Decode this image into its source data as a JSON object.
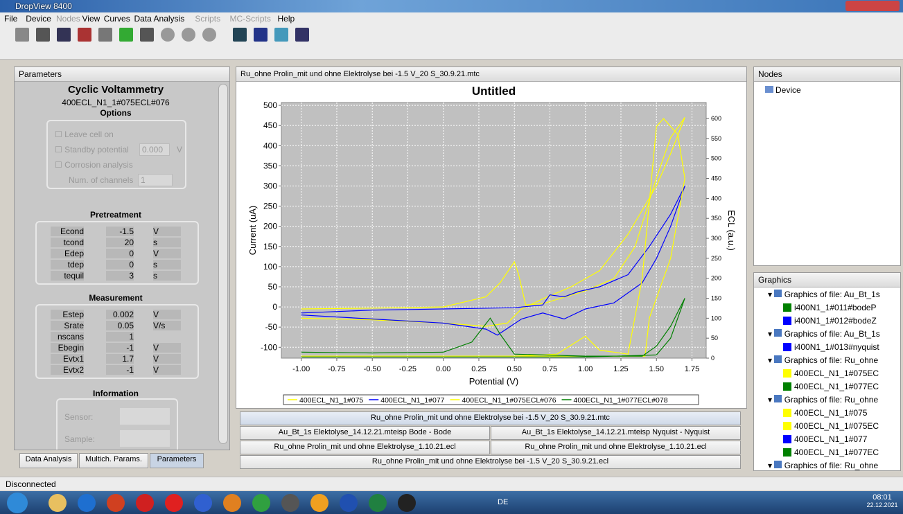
{
  "window": {
    "title": "DropView 8400"
  },
  "menu": [
    "File",
    "Device",
    "Nodes",
    "View",
    "Curves",
    "Data Analysis",
    "Scripts",
    "MC-Scripts",
    "Help"
  ],
  "parameters": {
    "title": "Parameters",
    "heading": "Cyclic Voltammetry",
    "subheading": "400ECL_N1_1#075ECL#076",
    "options": {
      "heading": "Options",
      "leave_cell_on": "Leave cell on",
      "standby_potential": "Standby potential",
      "standby_value": "0.000",
      "standby_unit": "V",
      "corrosion": "Corrosion analysis",
      "channels": "Num. of channels",
      "channels_value": "1"
    },
    "pretreatment": {
      "heading": "Pretreatment",
      "rows": [
        [
          "Econd",
          "-1.5",
          "V"
        ],
        [
          "tcond",
          "20",
          "s"
        ],
        [
          "Edep",
          "0",
          "V"
        ],
        [
          "tdep",
          "0",
          "s"
        ],
        [
          "tequil",
          "3",
          "s"
        ]
      ]
    },
    "measurement": {
      "heading": "Measurement",
      "rows": [
        [
          "Estep",
          "0.002",
          "V"
        ],
        [
          "Srate",
          "0.05",
          "V/s"
        ],
        [
          "nscans",
          "1",
          ""
        ],
        [
          "Ebegin",
          "-1",
          "V"
        ],
        [
          "Evtx1",
          "1.7",
          "V"
        ],
        [
          "Evtx2",
          "-1",
          "V"
        ]
      ]
    },
    "information": {
      "heading": "Information",
      "sensor": "Sensor:",
      "sample": "Sample:"
    },
    "tabs": [
      "Data Analysis",
      "Multich. Params.",
      "Parameters"
    ]
  },
  "chart_panel": {
    "file": "Ru_ohne Prolin_mit und ohne Elektrolyse bei -1.5 V_20 S_30.9.21.mtc"
  },
  "chart_data": {
    "type": "line",
    "title": "Untitled",
    "xlabel": "Potential (V)",
    "ylabel": "Current (uA)",
    "y2label": "ECL (a.u.)",
    "xlim": [
      -1.14,
      1.85
    ],
    "ylim": [
      -127,
      507
    ],
    "y2lim": [
      0,
      640
    ],
    "grid": true,
    "xticks": [
      {
        "value": -1,
        "label": "-1.00"
      },
      {
        "value": -0.75,
        "label": "-0.75"
      },
      {
        "value": -0.5,
        "label": "-0.50"
      },
      {
        "value": -0.25,
        "label": "-0.25"
      },
      {
        "value": 0,
        "label": "0.00"
      },
      {
        "value": 0.25,
        "label": "0.25"
      },
      {
        "value": 0.5,
        "label": "0.50"
      },
      {
        "value": 0.75,
        "label": "0.75"
      },
      {
        "value": 1,
        "label": "1.00"
      },
      {
        "value": 1.25,
        "label": "1.25"
      },
      {
        "value": 1.5,
        "label": "1.50"
      },
      {
        "value": 1.75,
        "label": "1.75"
      }
    ],
    "yticks": [
      -100,
      -50,
      0,
      50,
      100,
      150,
      200,
      250,
      300,
      350,
      400,
      450,
      500
    ],
    "y2ticks": [
      0,
      50,
      100,
      150,
      200,
      250,
      300,
      350,
      400,
      450,
      500,
      550,
      600
    ],
    "series": [
      {
        "name": "400ECL_N1_1#075",
        "color": "#ffff00",
        "x": [
          -1,
          -0.5,
          0,
          0.3,
          0.4,
          0.5,
          0.53,
          0.58,
          0.7,
          1.0,
          1.2,
          1.35,
          1.5,
          1.6,
          1.7,
          1.6,
          1.5,
          1.3,
          1.1,
          0.9,
          0.7,
          0.55,
          0.45,
          0.3,
          0,
          -0.5,
          -1
        ],
        "values": [
          -5,
          -3,
          0,
          25,
          60,
          112,
          80,
          5,
          8,
          40,
          70,
          150,
          320,
          420,
          470,
          380,
          300,
          180,
          90,
          50,
          20,
          -5,
          -40,
          -48,
          -40,
          -32,
          -28
        ]
      },
      {
        "name": "400ECL_N1_1#077",
        "color": "#0000ff",
        "x": [
          -1,
          -0.5,
          0,
          0.5,
          0.7,
          0.75,
          0.85,
          0.95,
          1.1,
          1.3,
          1.45,
          1.6,
          1.7,
          1.6,
          1.5,
          1.4,
          1.2,
          1.0,
          0.85,
          0.7,
          0.55,
          0.38,
          0.3,
          0,
          -0.5,
          -1
        ],
        "values": [
          -15,
          -8,
          -5,
          -2,
          5,
          30,
          25,
          38,
          50,
          80,
          150,
          230,
          300,
          200,
          120,
          60,
          10,
          -5,
          -30,
          -15,
          -30,
          -70,
          -55,
          -40,
          -30,
          -20
        ]
      },
      {
        "name": "400ECL_N1_1#075ECL#076",
        "color": "#ffff00",
        "axis": "y2",
        "x": [
          -1,
          0.5,
          0.8,
          1.0,
          1.1,
          1.3,
          1.4,
          1.5,
          1.55,
          1.65,
          1.7,
          1.6,
          1.45,
          1.42,
          1.0,
          0,
          -1
        ],
        "values": [
          5,
          5,
          10,
          55,
          20,
          10,
          200,
          580,
          600,
          560,
          450,
          250,
          100,
          5,
          5,
          5,
          5
        ]
      },
      {
        "name": "400ECL_N1_1#077ECL#078",
        "color": "#008000",
        "axis": "y2",
        "x": [
          -1,
          -0.5,
          0,
          0.2,
          0.33,
          0.4,
          0.5,
          1.0,
          1.4,
          1.5,
          1.6,
          1.7,
          1.6,
          1.5,
          1.0,
          0,
          -1
        ],
        "values": [
          15,
          13,
          15,
          40,
          100,
          60,
          10,
          5,
          5,
          30,
          80,
          150,
          50,
          8,
          3,
          3,
          3
        ]
      }
    ]
  },
  "file_tabs": [
    [
      "Ru_ohne Prolin_mit und ohne Elektrolyse bei -1.5 V_20 S_30.9.21.mtc"
    ],
    [
      "Au_Bt_1s Elektolyse_14.12.21.mteisp Bode - Bode",
      "Au_Bt_1s Elektolyse_14.12.21.mteisp Nyquist - Nyquist"
    ],
    [
      "Ru_ohne Prolin_mit und ohne Elektrolyse_1.10.21.ecl",
      "Ru_ohne Prolin_mit und ohne Elektrolyse_1.10.21.ecl"
    ],
    [
      "Ru_ohne Prolin_mit und ohne Elektrolyse bei -1.5 V_20 S_30.9.21.ecl"
    ]
  ],
  "nodes": {
    "title": "Nodes",
    "items": [
      "Device"
    ]
  },
  "graphics": {
    "title": "Graphics",
    "groups": [
      {
        "text": "Graphics of file: Au_Bt_1s",
        "children": [
          {
            "text": "i400N1_1#011#bodeP",
            "color": "#008000"
          },
          {
            "text": "i400N1_1#012#bodeZ",
            "color": "#0000ff"
          }
        ]
      },
      {
        "text": "Graphics of file: Au_Bt_1s",
        "children": [
          {
            "text": "i400N1_1#013#nyquist",
            "color": "#0000ff"
          }
        ]
      },
      {
        "text": "Graphics of file: Ru_ohne",
        "children": [
          {
            "text": "400ECL_N1_1#075EC",
            "color": "#ffff00"
          },
          {
            "text": "400ECL_N1_1#077EC",
            "color": "#008000"
          }
        ]
      },
      {
        "text": "Graphics of file: Ru_ohne",
        "children": [
          {
            "text": "400ECL_N1_1#075",
            "color": "#ffff00"
          },
          {
            "text": "400ECL_N1_1#075EC",
            "color": "#ffff00"
          },
          {
            "text": "400ECL_N1_1#077",
            "color": "#0000ff"
          },
          {
            "text": "400ECL_N1_1#077EC",
            "color": "#008000"
          }
        ]
      },
      {
        "text": "Graphics of file: Ru_ohne",
        "children": []
      }
    ]
  },
  "status": "Disconnected",
  "taskbar": {
    "lang": "DE",
    "time": "08:01",
    "date": "22.12.2021"
  }
}
